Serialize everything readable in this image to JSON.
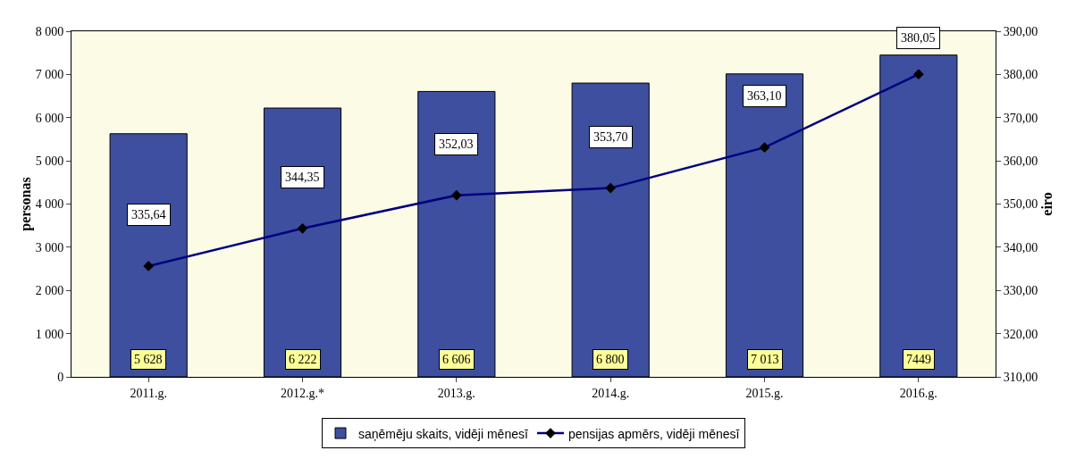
{
  "chart_data": {
    "type": "bar",
    "categories": [
      "2011.g.",
      "2012.g.*",
      "2013.g.",
      "2014.g.",
      "2015.g.",
      "2016.g."
    ],
    "series": [
      {
        "name": "saņēmēju skaits, vidēji mēnesī",
        "color": "#3d4f9e",
        "values": [
          5628,
          6222,
          6606,
          6800,
          7013,
          7449
        ],
        "value_labels": [
          "5 628",
          "6 222",
          "6 606",
          "6 800",
          "7 013",
          "7449"
        ]
      },
      {
        "name": "pensijas apmērs, vidēji mēnesī",
        "type": "line",
        "axis": "y2",
        "color": "#000080",
        "marker": "diamond",
        "values": [
          335.64,
          344.35,
          352.03,
          353.7,
          363.1,
          380.05
        ],
        "value_labels": [
          "335,64",
          "344,35",
          "352,03",
          "353,70",
          "363,10",
          "380,05"
        ]
      }
    ],
    "ylabel": "personas",
    "y2label": "eiro",
    "ylim": [
      0,
      8000
    ],
    "yticks": [
      0,
      {
        "value": 1000,
        "label": "1 000"
      },
      {
        "value": 2000,
        "label": "2 000"
      },
      {
        "value": 3000,
        "label": "3 000"
      },
      {
        "value": 4000,
        "label": "4 000"
      },
      {
        "value": 5000,
        "label": "5 000"
      },
      {
        "value": 6000,
        "label": "6 000"
      },
      {
        "value": 7000,
        "label": "7 000"
      },
      {
        "value": 8000,
        "label": "8 000"
      }
    ],
    "y2lim": [
      310,
      390
    ],
    "y2ticks": [
      {
        "value": 310,
        "label": "310,00"
      },
      {
        "value": 320,
        "label": "320,00"
      },
      {
        "value": 330,
        "label": "330,00"
      },
      {
        "value": 340,
        "label": "340,00"
      },
      {
        "value": 350,
        "label": "350,00"
      },
      {
        "value": 360,
        "label": "360,00"
      },
      {
        "value": 370,
        "label": "370,00"
      },
      {
        "value": 380,
        "label": "380,00"
      },
      {
        "value": 390,
        "label": "390,00"
      }
    ],
    "legend": "bottom"
  }
}
